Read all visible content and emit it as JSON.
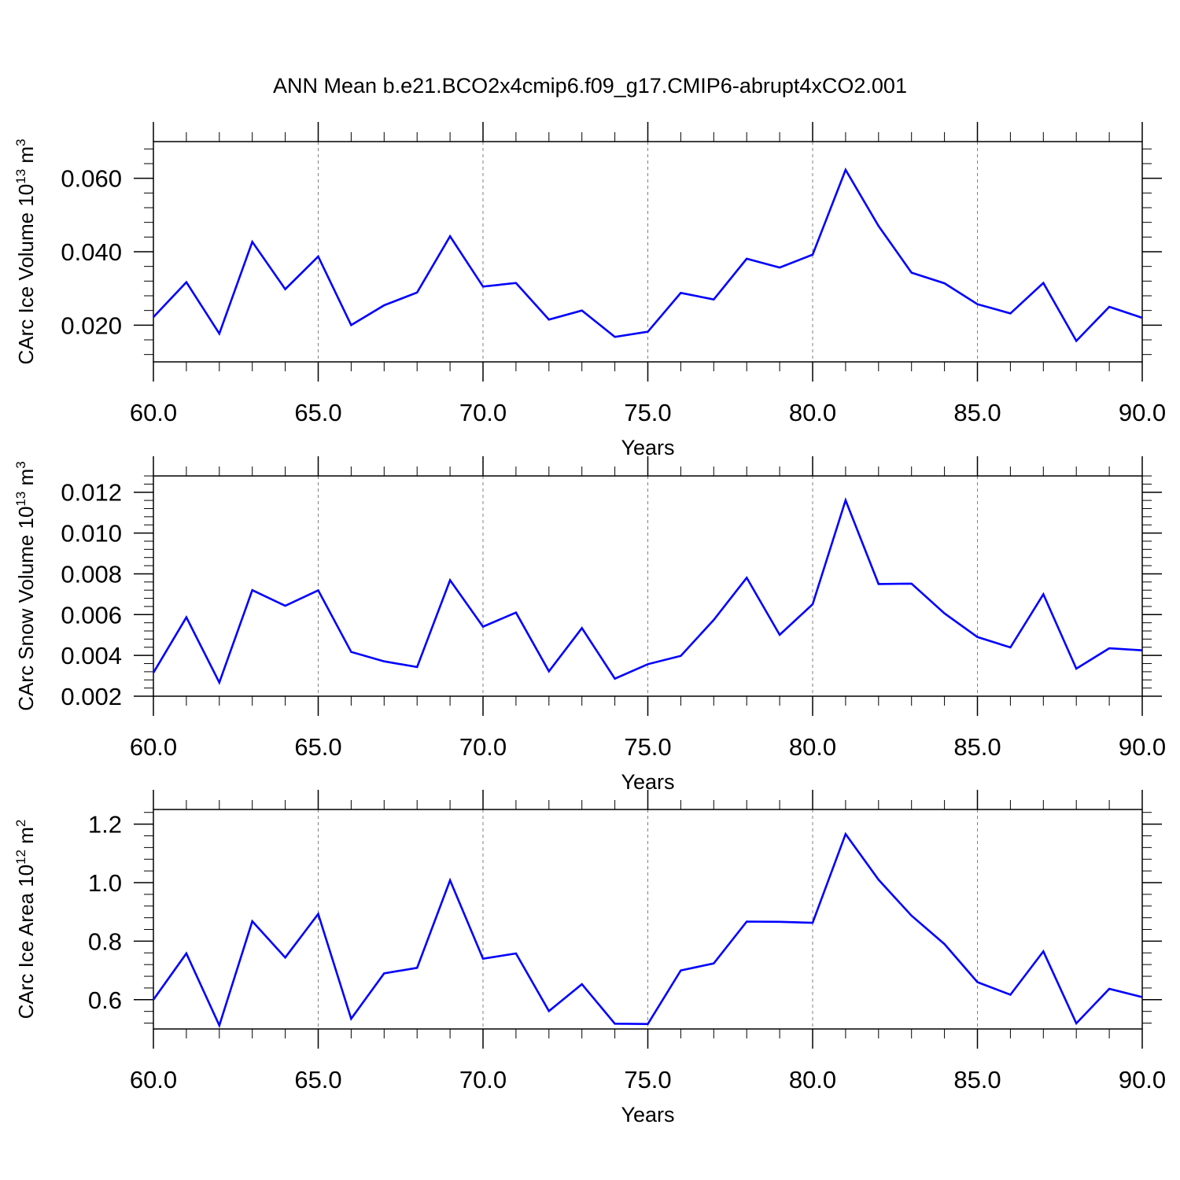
{
  "title": "ANN Mean b.e21.BCO2x4cmip6.f09_g17.CMIP6-abrupt4xCO2.001",
  "colors": {
    "line": "#0000ff",
    "axis": "#000000",
    "grid": "#808080"
  },
  "chart_data": [
    {
      "type": "line",
      "title": "ANN Mean b.e21.BCO2x4cmip6.f09_g17.CMIP6-abrupt4xCO2.001",
      "ylabel": "CArc Ice Volume 10",
      "ylabel_exp": "13",
      "ylabel_unit": " m",
      "ylabel_unit_exp": "3",
      "xlabel": "Years",
      "xlim": [
        60,
        90
      ],
      "ylim": [
        0.01,
        0.07
      ],
      "xticks": [
        60,
        65,
        70,
        75,
        80,
        85,
        90
      ],
      "xtick_labels": [
        "60.0",
        "65.0",
        "70.0",
        "75.0",
        "80.0",
        "85.0",
        "90.0"
      ],
      "yticks": [
        0.02,
        0.04,
        0.06
      ],
      "ytick_labels": [
        "0.020",
        "0.040",
        "0.060"
      ],
      "grid": "vertical dashed at major x ticks",
      "x": [
        60,
        61,
        62,
        63,
        64,
        65,
        66,
        67,
        68,
        69,
        70,
        71,
        72,
        73,
        74,
        75,
        76,
        77,
        78,
        79,
        80,
        81,
        82,
        83,
        84,
        85,
        86,
        87,
        88,
        89,
        90
      ],
      "series": [
        {
          "values": [
            0.0222,
            0.0317,
            0.0177,
            0.0427,
            0.0298,
            0.0387,
            0.02,
            0.0254,
            0.0289,
            0.0442,
            0.0305,
            0.0315,
            0.0215,
            0.024,
            0.0168,
            0.0182,
            0.0288,
            0.027,
            0.0381,
            0.0357,
            0.0392,
            0.0623,
            0.047,
            0.0343,
            0.0314,
            0.0257,
            0.0232,
            0.0315,
            0.0157,
            0.025,
            0.022
          ]
        }
      ]
    },
    {
      "type": "line",
      "ylabel": "CArc Snow Volume 10",
      "ylabel_exp": "13",
      "ylabel_unit": " m",
      "ylabel_unit_exp": "3",
      "xlabel": "Years",
      "xlim": [
        60,
        90
      ],
      "ylim": [
        0.002,
        0.0128
      ],
      "xticks": [
        60,
        65,
        70,
        75,
        80,
        85,
        90
      ],
      "xtick_labels": [
        "60.0",
        "65.0",
        "70.0",
        "75.0",
        "80.0",
        "85.0",
        "90.0"
      ],
      "yticks": [
        0.002,
        0.004,
        0.006,
        0.008,
        0.01,
        0.012
      ],
      "ytick_labels": [
        "0.002",
        "0.004",
        "0.006",
        "0.008",
        "0.010",
        "0.012"
      ],
      "grid": "vertical dashed at major x ticks",
      "x": [
        60,
        61,
        62,
        63,
        64,
        65,
        66,
        67,
        68,
        69,
        70,
        71,
        72,
        73,
        74,
        75,
        76,
        77,
        78,
        79,
        80,
        81,
        82,
        83,
        84,
        85,
        86,
        87,
        88,
        89,
        90
      ],
      "series": [
        {
          "values": [
            0.00315,
            0.00587,
            0.00267,
            0.0072,
            0.00643,
            0.00719,
            0.00417,
            0.00371,
            0.00343,
            0.00769,
            0.00541,
            0.0061,
            0.00322,
            0.00534,
            0.00286,
            0.00357,
            0.00398,
            0.00574,
            0.00781,
            0.00501,
            0.00651,
            0.01161,
            0.0075,
            0.00752,
            0.00606,
            0.0049,
            0.00439,
            0.007,
            0.00335,
            0.00435,
            0.00425
          ]
        }
      ]
    },
    {
      "type": "line",
      "ylabel": "CArc Ice Area 10",
      "ylabel_exp": "12",
      "ylabel_unit": " m",
      "ylabel_unit_exp": "2",
      "xlabel": "Years",
      "xlim": [
        60,
        90
      ],
      "ylim": [
        0.5,
        1.25
      ],
      "xticks": [
        60,
        65,
        70,
        75,
        80,
        85,
        90
      ],
      "xtick_labels": [
        "60.0",
        "65.0",
        "70.0",
        "75.0",
        "80.0",
        "85.0",
        "90.0"
      ],
      "yticks": [
        0.6,
        0.8,
        1.0,
        1.2
      ],
      "ytick_labels": [
        "0.6",
        "0.8",
        "1.0",
        "1.2"
      ],
      "grid": "vertical dashed at major x ticks",
      "x": [
        60,
        61,
        62,
        63,
        64,
        65,
        66,
        67,
        68,
        69,
        70,
        71,
        72,
        73,
        74,
        75,
        76,
        77,
        78,
        79,
        80,
        81,
        82,
        83,
        84,
        85,
        86,
        87,
        88,
        89,
        90
      ],
      "series": [
        {
          "values": [
            0.6,
            0.758,
            0.512,
            0.868,
            0.744,
            0.893,
            0.535,
            0.69,
            0.709,
            1.008,
            0.74,
            0.758,
            0.561,
            0.653,
            0.518,
            0.517,
            0.7,
            0.724,
            0.867,
            0.866,
            0.863,
            1.166,
            1.01,
            0.887,
            0.79,
            0.66,
            0.617,
            0.765,
            0.519,
            0.637,
            0.609
          ]
        }
      ]
    }
  ]
}
